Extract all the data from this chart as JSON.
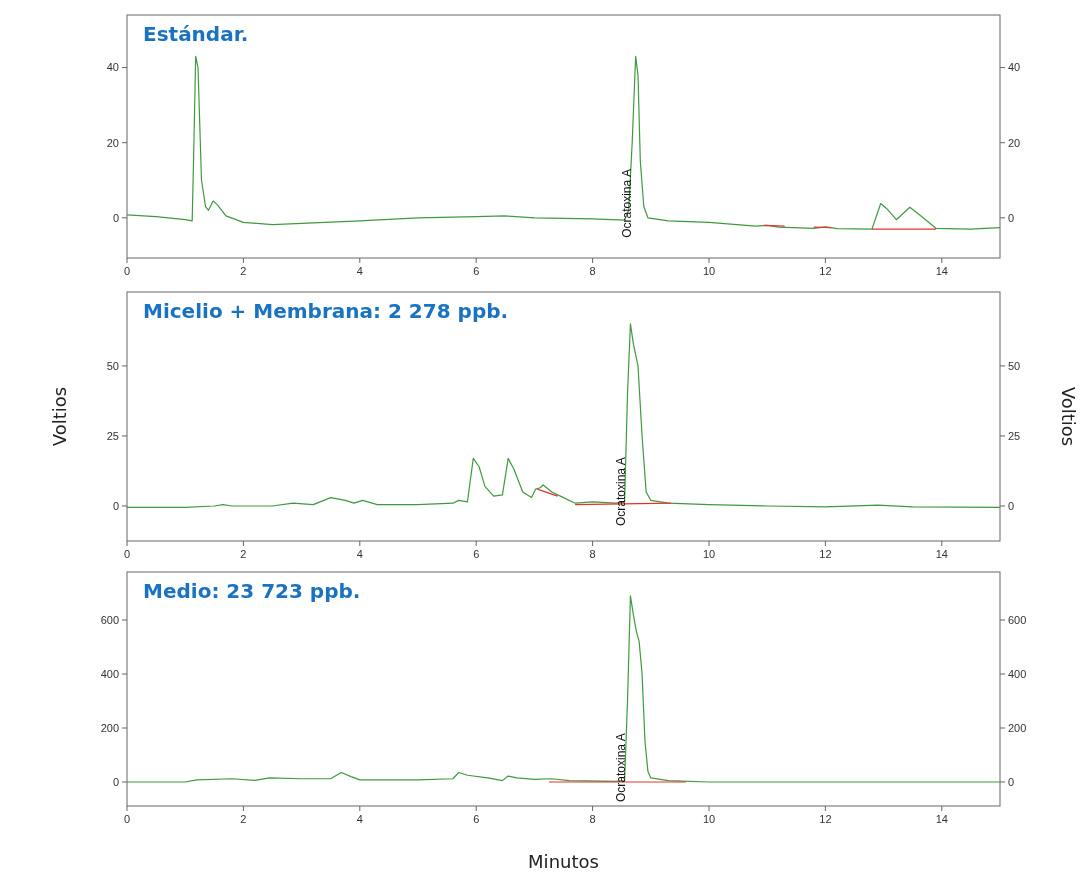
{
  "chart_data": [
    {
      "type": "line",
      "title": "Estándar.",
      "xlim": [
        0,
        15
      ],
      "xticks": [
        0,
        2,
        4,
        6,
        8,
        10,
        12,
        14
      ],
      "ylim": [
        -10.7,
        54
      ],
      "yticks": [
        0,
        20,
        40
      ],
      "y2lim": [
        -10.7,
        54
      ],
      "y2ticks": [
        0,
        20,
        40
      ],
      "grid": false,
      "marker": "none",
      "line_style": "solid",
      "annotations": [
        "Ocratoxina A"
      ],
      "series": [
        {
          "color": "#3f9a3f",
          "x": [
            0,
            0.5,
            1.0,
            1.12,
            1.15,
            1.18,
            1.22,
            1.28,
            1.35,
            1.4,
            1.48,
            1.55,
            1.7,
            2.0,
            2.5,
            3,
            4,
            5,
            6,
            6.5,
            7,
            8,
            8.55,
            8.62,
            8.68,
            8.74,
            8.78,
            8.82,
            8.88,
            8.95,
            9.3,
            10,
            10.8,
            11,
            11.2,
            11.8,
            12,
            12.2,
            12.8,
            12.95,
            13.05,
            13.22,
            13.45,
            13.6,
            13.9,
            14.5,
            15
          ],
          "values": [
            0.8,
            0.3,
            -0.5,
            -0.8,
            20,
            43,
            40,
            10,
            3,
            2,
            4.5,
            3.5,
            0.5,
            -1.2,
            -1.8,
            -1.5,
            -0.8,
            0,
            0.3,
            0.5,
            0,
            -0.3,
            -0.6,
            2,
            20,
            43,
            38,
            15,
            3,
            0,
            -0.8,
            -1.2,
            -2.2,
            -2,
            -2.5,
            -2.8,
            -2.4,
            -2.9,
            -3,
            3.8,
            2.5,
            -0.5,
            2.8,
            1,
            -2.8,
            -3,
            -2.6
          ]
        },
        {
          "type": "line",
          "color": "#e83030",
          "x": [
            10.95,
            11.3,
            11.31,
            11.8,
            12.1,
            12.11,
            12.8,
            13.9
          ],
          "values": [
            -2,
            -2.2,
            null,
            -2.5,
            -2.6,
            null,
            -3,
            -3
          ]
        }
      ]
    },
    {
      "type": "line",
      "title": "Micelio + Membrana: 2 278 ppb.",
      "ylabel": "Voltios",
      "y2label": "Voltios",
      "xlim": [
        0,
        15
      ],
      "xticks": [
        0,
        2,
        4,
        6,
        8,
        10,
        12,
        14
      ],
      "ylim": [
        -12.5,
        76.4
      ],
      "yticks": [
        0,
        25,
        50
      ],
      "y2lim": [
        -12.5,
        76.4
      ],
      "y2ticks": [
        0,
        25,
        50
      ],
      "grid": false,
      "marker": "none",
      "line_style": "solid",
      "annotations": [
        "Ocratoxina A"
      ],
      "series": [
        {
          "color": "#3f9a3f",
          "x": [
            0,
            1,
            1.5,
            1.65,
            1.8,
            2.5,
            2.85,
            3.2,
            3.5,
            3.75,
            3.9,
            4.05,
            4.3,
            5,
            5.6,
            5.7,
            5.85,
            5.95,
            6.05,
            6.15,
            6.3,
            6.45,
            6.55,
            6.65,
            6.8,
            6.95,
            7.02,
            7.1,
            7.15,
            7.3,
            7.5,
            7.7,
            8,
            8.4,
            8.55,
            8.6,
            8.65,
            8.7,
            8.78,
            8.85,
            8.92,
            9.0,
            9.3,
            10,
            11,
            12,
            12.9,
            13.5,
            15
          ],
          "values": [
            -0.5,
            -0.5,
            0,
            0.5,
            0,
            0,
            1,
            0.5,
            3,
            2,
            1,
            2,
            0.5,
            0.5,
            1,
            2,
            1.5,
            17,
            14,
            7,
            3.5,
            4,
            17,
            13,
            5,
            3,
            6,
            6.5,
            7.5,
            5,
            3,
            1,
            1.5,
            1,
            1.5,
            40,
            65,
            58,
            50,
            25,
            5,
            2,
            1,
            0.5,
            0,
            -0.3,
            0.3,
            -0.3,
            -0.5
          ]
        },
        {
          "type": "line",
          "color": "#e83030",
          "x": [
            7.05,
            7.4,
            7.41,
            7.7,
            9.35
          ],
          "values": [
            6,
            3.5,
            null,
            0.5,
            1
          ]
        }
      ]
    },
    {
      "type": "line",
      "title": "Medio: 23 723 ppb.",
      "xlabel": "Minutos",
      "xlim": [
        0,
        15
      ],
      "xticks": [
        0,
        2,
        4,
        6,
        8,
        10,
        12,
        14
      ],
      "ylim": [
        -89,
        778
      ],
      "yticks": [
        0,
        200,
        400,
        600
      ],
      "y2lim": [
        -89,
        778
      ],
      "y2ticks": [
        0,
        200,
        400,
        600
      ],
      "grid": false,
      "marker": "none",
      "line_style": "solid",
      "annotations": [
        "Ocratoxina A"
      ],
      "series": [
        {
          "color": "#3f9a3f",
          "x": [
            0,
            1,
            1.2,
            1.8,
            2.2,
            2.45,
            3,
            3.5,
            3.68,
            3.85,
            4,
            5,
            5.6,
            5.7,
            5.85,
            6.2,
            6.45,
            6.55,
            6.7,
            7,
            7.3,
            7.6,
            8.4,
            8.55,
            8.6,
            8.65,
            8.7,
            8.75,
            8.8,
            8.85,
            8.9,
            8.95,
            9.0,
            9.3,
            10,
            15
          ],
          "values": [
            0,
            0,
            8,
            12,
            6,
            15,
            12,
            12,
            35,
            20,
            8,
            8,
            12,
            35,
            25,
            15,
            5,
            22,
            15,
            10,
            12,
            5,
            2,
            5,
            300,
            690,
            620,
            560,
            520,
            400,
            150,
            40,
            15,
            5,
            0,
            0
          ]
        },
        {
          "type": "line",
          "color": "#e83030",
          "x": [
            7.25,
            9.6
          ],
          "values": [
            0,
            0
          ]
        }
      ]
    }
  ]
}
